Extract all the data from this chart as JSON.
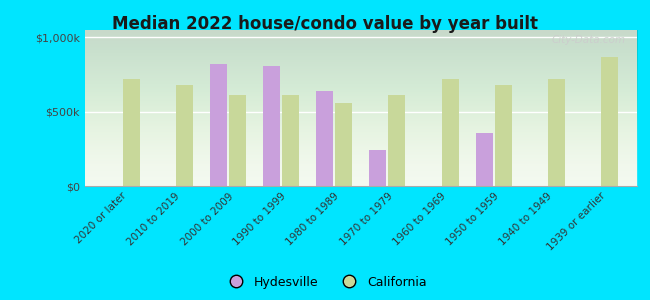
{
  "title": "Median 2022 house/condo value by year built",
  "categories": [
    "2020 or later",
    "2010 to 2019",
    "2000 to 2009",
    "1990 to 1999",
    "1980 to 1989",
    "1970 to 1979",
    "1960 to 1969",
    "1950 to 1959",
    "1940 to 1949",
    "1939 or earlier"
  ],
  "hydesville": [
    null,
    null,
    820000,
    810000,
    640000,
    240000,
    null,
    360000,
    null,
    null
  ],
  "california": [
    720000,
    680000,
    610000,
    610000,
    560000,
    610000,
    720000,
    680000,
    720000,
    870000
  ],
  "hydesville_color": "#c9a0dc",
  "california_color": "#c8d89a",
  "background_color": "#00e5ff",
  "ylabel_ticks": [
    "$0",
    "$500k",
    "$1,000k"
  ],
  "ytick_values": [
    0,
    500000,
    1000000
  ],
  "ylim": [
    0,
    1050000
  ],
  "bar_width": 0.32,
  "legend_labels": [
    "Hydesville",
    "California"
  ],
  "watermark": "City-Data.com"
}
